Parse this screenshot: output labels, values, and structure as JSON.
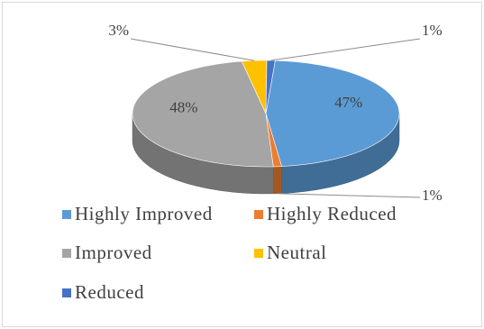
{
  "chart_data": {
    "type": "pie",
    "style": "3d",
    "categories": [
      "Highly Improved",
      "Highly Reduced",
      "Improved",
      "Neutral",
      "Reduced"
    ],
    "values": [
      47,
      1,
      48,
      3,
      1
    ],
    "data_labels": [
      "47%",
      "1%",
      "48%",
      "3%",
      "1%"
    ],
    "colors": [
      "#5b9bd5",
      "#ed7d31",
      "#a5a5a5",
      "#ffc000",
      "#4472c4"
    ],
    "legend_position": "bottom",
    "title": ""
  }
}
